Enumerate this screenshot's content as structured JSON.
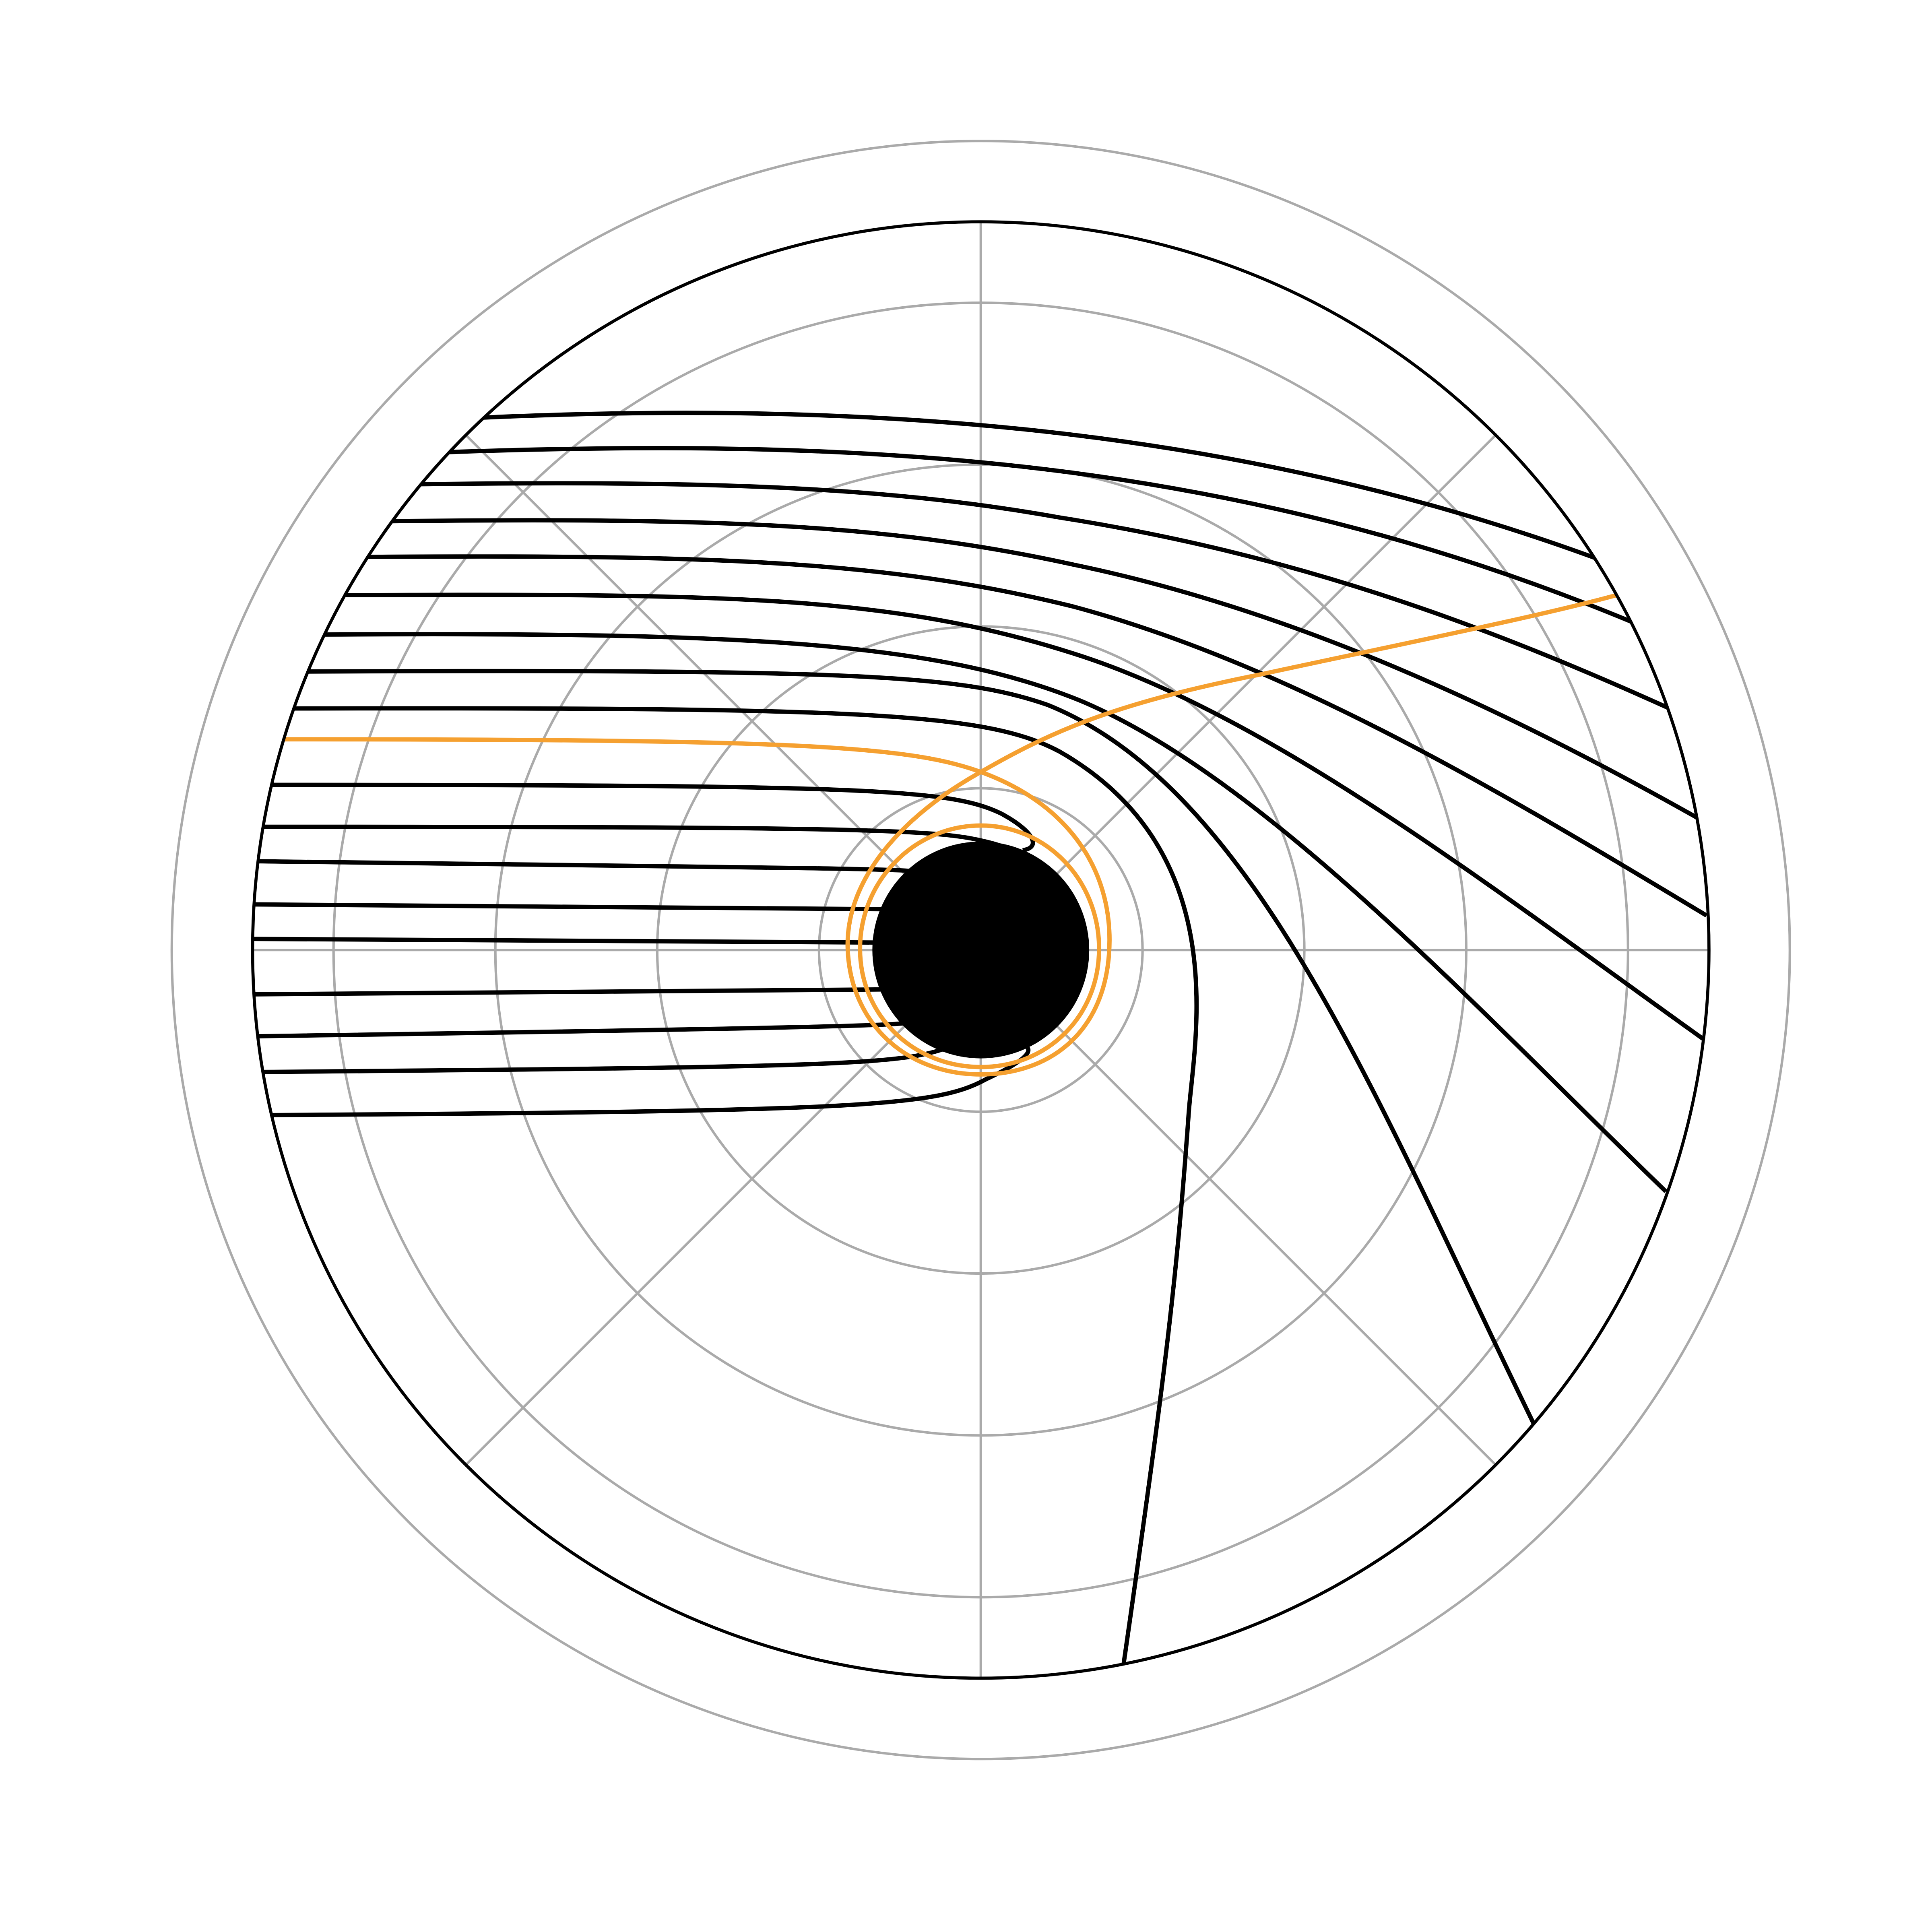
{
  "diagram": {
    "type": "polar-plot",
    "description_key": "photon-trajectories-around-black-hole",
    "colors": {
      "background": "#ffffff",
      "grid": "#aaaaaa",
      "frame": "#000000",
      "ray": "#000000",
      "highlight_ray": "#f5a030",
      "black_hole": "#000000"
    },
    "grid": {
      "visible": true,
      "rings": 5,
      "spokes": 8
    },
    "ray_count": 23,
    "highlighted_ray_count": 1
  }
}
